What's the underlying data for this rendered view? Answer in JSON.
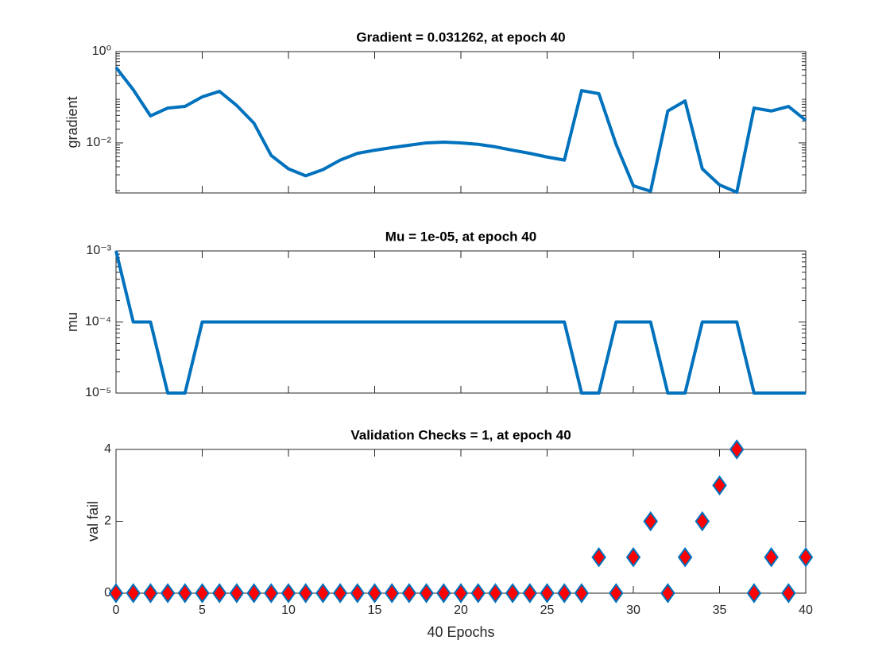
{
  "chart_data": [
    {
      "type": "line",
      "title": "Gradient = 0.031262, at epoch 40",
      "ylabel": "gradient",
      "log_y": true,
      "color": "#0072BD",
      "x": [
        0,
        1,
        2,
        3,
        4,
        5,
        6,
        7,
        8,
        9,
        10,
        11,
        12,
        13,
        14,
        15,
        16,
        17,
        18,
        19,
        20,
        21,
        22,
        23,
        24,
        25,
        26,
        27,
        28,
        29,
        30,
        31,
        32,
        33,
        34,
        35,
        36,
        37,
        38,
        39,
        40
      ],
      "values": [
        0.45,
        0.146,
        0.039,
        0.058,
        0.063,
        0.102,
        0.135,
        0.066,
        0.027,
        0.0053,
        0.0027,
        0.0019,
        0.0026,
        0.0042,
        0.0059,
        0.0069,
        0.0079,
        0.0089,
        0.01,
        0.0104,
        0.01,
        0.0093,
        0.0082,
        0.0069,
        0.0059,
        0.0049,
        0.0042,
        0.14,
        0.12,
        0.0093,
        0.00115,
        0.00087,
        0.05,
        0.083,
        0.0027,
        0.0012,
        0.00083,
        0.058,
        0.05,
        0.063,
        0.031262
      ],
      "xlim": [
        0,
        40
      ],
      "ylim": [
        0.0008,
        1
      ],
      "yticks": [
        {
          "value": 1,
          "label": "10⁰"
        },
        {
          "value": 0.01,
          "label": "10⁻²"
        }
      ]
    },
    {
      "type": "line",
      "title": "Mu = 1e-05, at epoch 40",
      "ylabel": "mu",
      "log_y": true,
      "color": "#0072BD",
      "x": [
        0,
        1,
        2,
        3,
        4,
        5,
        6,
        7,
        8,
        9,
        10,
        11,
        12,
        13,
        14,
        15,
        16,
        17,
        18,
        19,
        20,
        21,
        22,
        23,
        24,
        25,
        26,
        27,
        28,
        29,
        30,
        31,
        32,
        33,
        34,
        35,
        36,
        37,
        38,
        39,
        40
      ],
      "values": [
        0.001,
        0.0001,
        0.0001,
        1e-05,
        1e-05,
        0.0001,
        0.0001,
        0.0001,
        0.0001,
        0.0001,
        0.0001,
        0.0001,
        0.0001,
        0.0001,
        0.0001,
        0.0001,
        0.0001,
        0.0001,
        0.0001,
        0.0001,
        0.0001,
        0.0001,
        0.0001,
        0.0001,
        0.0001,
        0.0001,
        0.0001,
        1e-05,
        1e-05,
        0.0001,
        0.0001,
        0.0001,
        1e-05,
        1e-05,
        0.0001,
        0.0001,
        0.0001,
        1e-05,
        1e-05,
        1e-05,
        1e-05
      ],
      "xlim": [
        0,
        40
      ],
      "ylim": [
        1e-05,
        0.001
      ],
      "yticks": [
        {
          "value": 0.001,
          "label": "10⁻³"
        },
        {
          "value": 0.0001,
          "label": "10⁻⁴"
        },
        {
          "value": 1e-05,
          "label": "10⁻⁵"
        }
      ]
    },
    {
      "type": "scatter",
      "title": "Validation Checks = 1, at epoch 40",
      "ylabel": "val fail",
      "xlabel": "40 Epochs",
      "log_y": false,
      "color": "#0072BD",
      "marker_fill": "#FF0000",
      "x": [
        0,
        1,
        2,
        3,
        4,
        5,
        6,
        7,
        8,
        9,
        10,
        11,
        12,
        13,
        14,
        15,
        16,
        17,
        18,
        19,
        20,
        21,
        22,
        23,
        24,
        25,
        26,
        27,
        28,
        29,
        30,
        31,
        32,
        33,
        34,
        35,
        36,
        37,
        38,
        39,
        40
      ],
      "values": [
        0,
        0,
        0,
        0,
        0,
        0,
        0,
        0,
        0,
        0,
        0,
        0,
        0,
        0,
        0,
        0,
        0,
        0,
        0,
        0,
        0,
        0,
        0,
        0,
        0,
        0,
        0,
        0,
        1,
        0,
        1,
        2,
        0,
        1,
        2,
        3,
        4,
        0,
        1,
        0,
        1
      ],
      "xlim": [
        0,
        40
      ],
      "ylim": [
        0,
        4
      ],
      "yticks": [
        0,
        2,
        4
      ],
      "xticks": [
        0,
        5,
        10,
        15,
        20,
        25,
        30,
        35,
        40
      ]
    }
  ]
}
